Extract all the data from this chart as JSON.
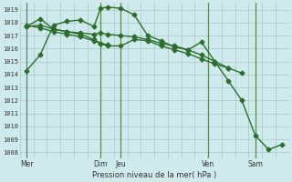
{
  "xlabel": "Pression niveau de la mer( hPa )",
  "background_color": "#ceeaec",
  "grid_color": "#b0cccc",
  "line_color": "#2d6e2d",
  "vline_color": "#5a8a5a",
  "ylim": [
    1007.5,
    1019.5
  ],
  "yticks": [
    1008,
    1009,
    1010,
    1011,
    1012,
    1013,
    1014,
    1015,
    1016,
    1017,
    1018,
    1019
  ],
  "xlim": [
    0,
    20
  ],
  "xtick_positions": [
    0.5,
    6.0,
    7.5,
    14.0,
    17.5
  ],
  "xtick_labels": [
    "Mer",
    "Dim",
    "Jeu",
    "Ven",
    "Sam"
  ],
  "vline_positions": [
    0.5,
    6.0,
    7.5,
    14.0,
    17.5
  ],
  "n_xgrid": 20,
  "series": [
    {
      "x": [
        0.5,
        1.5,
        2.5,
        3.5,
        4.5,
        5.5,
        6.0,
        6.5,
        7.5,
        8.5,
        9.5,
        10.5,
        11.5,
        12.5,
        13.5,
        14.5,
        15.5,
        16.5,
        17.5,
        18.5,
        19.5
      ],
      "y": [
        1014.3,
        1015.5,
        1017.8,
        1018.1,
        1018.2,
        1017.7,
        1019.1,
        1019.2,
        1019.1,
        1018.6,
        1017.0,
        1016.6,
        1016.1,
        1015.9,
        1016.5,
        1015.0,
        1013.5,
        1012.0,
        1009.3,
        1008.2,
        1008.6
      ]
    },
    {
      "x": [
        0.5,
        1.5,
        2.5,
        3.5,
        4.5,
        5.5,
        6.0,
        6.5,
        7.5,
        8.5,
        9.5,
        10.5,
        11.5,
        12.5,
        13.5,
        14.5,
        15.5,
        16.5
      ],
      "y": [
        1017.7,
        1017.8,
        1017.5,
        1017.3,
        1017.2,
        1017.1,
        1017.2,
        1017.1,
        1017.0,
        1016.9,
        1016.7,
        1016.4,
        1016.2,
        1015.9,
        1015.5,
        1015.0,
        1014.5,
        1014.1
      ]
    },
    {
      "x": [
        0.5,
        1.5,
        2.5,
        3.5,
        4.5,
        5.5,
        6.0,
        6.5,
        7.5,
        8.5,
        9.5,
        10.5,
        11.5,
        12.5,
        13.5,
        14.5,
        15.5
      ],
      "y": [
        1017.7,
        1018.3,
        1017.5,
        1017.3,
        1017.1,
        1016.7,
        1016.4,
        1016.2,
        1016.2,
        1016.7,
        1016.6,
        1016.2,
        1015.9,
        1015.6,
        1015.2,
        1014.8,
        1014.5
      ]
    },
    {
      "x": [
        0.5,
        1.5,
        2.5,
        3.5,
        4.5,
        5.5,
        6.0,
        6.5
      ],
      "y": [
        1017.8,
        1017.6,
        1017.3,
        1017.1,
        1016.9,
        1016.6,
        1016.4,
        1016.3
      ]
    }
  ]
}
